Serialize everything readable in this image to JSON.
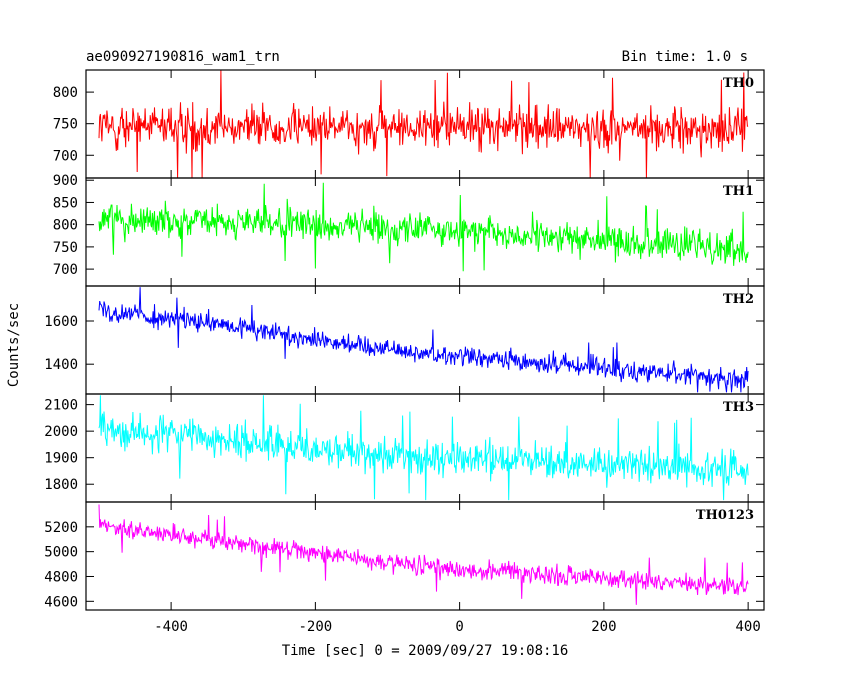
{
  "chart_data": {
    "type": "line",
    "title": "ae090927190816_wam1_trn",
    "subtitle": "Bin time: 1.0 s",
    "xlabel": "Time [sec] 0 = 2009/09/27 19:08:16",
    "ylabel": "Counts/sec",
    "xlim": [
      -518,
      422
    ],
    "x_ticks": [
      -400,
      -200,
      0,
      200,
      400
    ],
    "x_range": [
      -500,
      400
    ],
    "bin_time": 1.0,
    "panels": [
      {
        "name": "TH0",
        "color": "#ff0000",
        "ylim": [
          664,
          835
        ],
        "y_ticks": [
          700,
          750,
          800
        ],
        "start": 745,
        "end": 740,
        "mid": 745,
        "noise": 28,
        "spike_max": 835,
        "spike_min": 664
      },
      {
        "name": "TH1",
        "color": "#00ff00",
        "ylim": [
          662,
          905
        ],
        "y_ticks": [
          700,
          750,
          800,
          850,
          900
        ],
        "start": 815,
        "end": 745,
        "mid": 790,
        "noise": 30,
        "spike_max": 900,
        "spike_min": 665
      },
      {
        "name": "TH2",
        "color": "#0000ff",
        "ylim": [
          1262,
          1762
        ],
        "y_ticks": [
          1400,
          1600
        ],
        "start": 1655,
        "end": 1325,
        "mid": 1450,
        "noise": 40,
        "spike_max": 1760,
        "spike_min": 1270
      },
      {
        "name": "TH3",
        "color": "#00ffff",
        "ylim": [
          1733,
          2140
        ],
        "y_ticks": [
          1800,
          1900,
          2000,
          2100
        ],
        "start": 2010,
        "end": 1855,
        "mid": 1900,
        "noise": 55,
        "spike_max": 2135,
        "spike_min": 1740
      },
      {
        "name": "TH0123",
        "color": "#ff00ff",
        "ylim": [
          4530,
          5400
        ],
        "y_ticks": [
          4600,
          4800,
          5000,
          5200
        ],
        "start": 5215,
        "end": 4705,
        "mid": 4880,
        "noise": 65,
        "spike_max": 5380,
        "spike_min": 4540
      }
    ]
  }
}
